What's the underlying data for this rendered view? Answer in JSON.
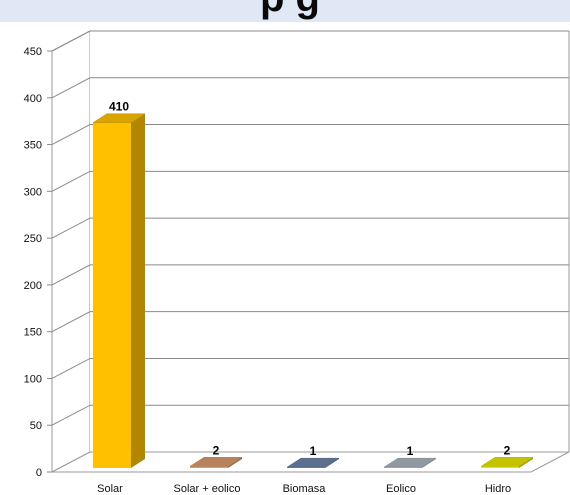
{
  "title_fragment": "p      g",
  "chart_data": {
    "type": "bar",
    "categories": [
      "Solar",
      "Solar + eolico",
      "Biomasa",
      "Eolico",
      "Hidro"
    ],
    "values": [
      410,
      2,
      1,
      1,
      2
    ],
    "data_labels": [
      "410",
      "2",
      "1",
      "1",
      "2"
    ],
    "colors": [
      "#ffc000",
      "#d99a6c",
      "#6b83a8",
      "#a9b4bf",
      "#e5e500"
    ],
    "ylim": [
      0,
      450
    ],
    "yticks": [
      0,
      50,
      100,
      150,
      200,
      250,
      300,
      350,
      400,
      450
    ],
    "grid": true,
    "style": "3d-column"
  }
}
